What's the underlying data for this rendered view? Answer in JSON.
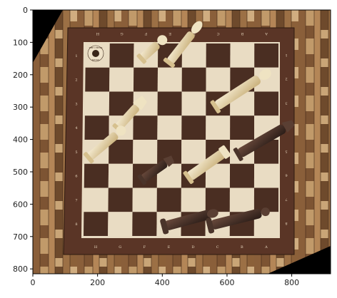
{
  "axes": {
    "x_ticks": [
      "0",
      "200",
      "400",
      "600",
      "800"
    ],
    "y_ticks": [
      "0",
      "100",
      "200",
      "300",
      "400",
      "500",
      "600",
      "700",
      "800"
    ]
  },
  "board": {
    "top_letters": [
      "H",
      "G",
      "F",
      "E",
      "D",
      "C",
      "B",
      "A"
    ],
    "bottom_letters": [
      "H",
      "G",
      "F",
      "E",
      "D",
      "C",
      "B",
      "A"
    ],
    "left_numbers": [
      "1",
      "2",
      "3",
      "4",
      "5",
      "6",
      "7",
      "8"
    ],
    "right_numbers": [
      "1",
      "2",
      "3",
      "4",
      "5",
      "6",
      "7",
      "8"
    ],
    "logo_lines": [
      "THE CHESS",
      "KINGS"
    ]
  },
  "colors": {
    "dark_square": "#4a2e22",
    "light_square": "#e9dcc3",
    "frame": "#5a3526",
    "light_piece": "#e6d7a8",
    "dark_piece": "#3b2a24"
  }
}
